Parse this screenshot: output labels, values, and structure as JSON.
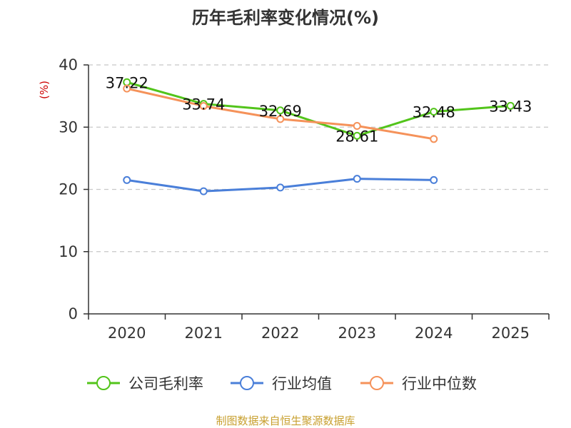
{
  "chart_data": {
    "type": "line",
    "title": "历年毛利率变化情况(%)",
    "ylabel": "(%)",
    "xlabel": "",
    "categories": [
      "2020",
      "2021",
      "2022",
      "2023",
      "2024",
      "2025"
    ],
    "ylim": [
      0,
      40
    ],
    "yticks": [
      0,
      10,
      20,
      30,
      40
    ],
    "grid": true,
    "legend_position": "bottom",
    "series": [
      {
        "name": "公司毛利率",
        "color": "#52c41a",
        "values": [
          37.22,
          33.74,
          32.69,
          28.61,
          32.48,
          33.43
        ],
        "labels": [
          "37.22",
          "33.74",
          "32.69",
          "28.61",
          "32.48",
          "33.43"
        ]
      },
      {
        "name": "行业均值",
        "color": "#4a7fd9",
        "values": [
          21.5,
          19.7,
          20.3,
          21.7,
          21.5,
          null
        ]
      },
      {
        "name": "行业中位数",
        "color": "#f5925a",
        "values": [
          36.2,
          33.4,
          31.3,
          30.2,
          28.1,
          null
        ]
      }
    ]
  },
  "source": "制图数据来自恒生聚源数据库"
}
